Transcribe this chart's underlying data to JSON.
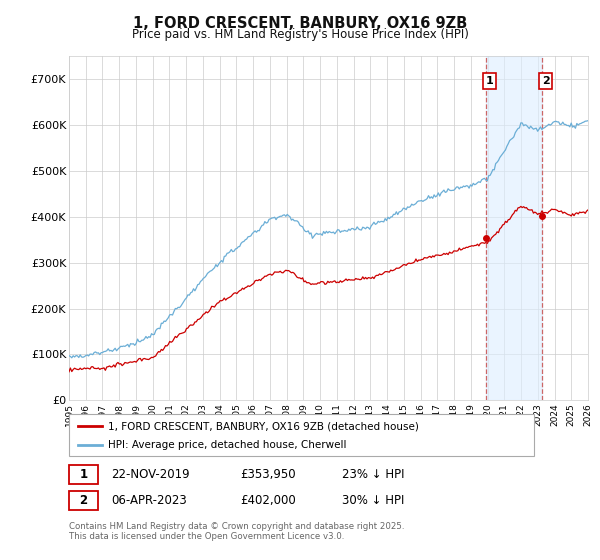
{
  "title": "1, FORD CRESCENT, BANBURY, OX16 9ZB",
  "subtitle": "Price paid vs. HM Land Registry's House Price Index (HPI)",
  "legend_entry1": "1, FORD CRESCENT, BANBURY, OX16 9ZB (detached house)",
  "legend_entry2": "HPI: Average price, detached house, Cherwell",
  "annotation1_date": "22-NOV-2019",
  "annotation1_price": "£353,950",
  "annotation1_hpi": "23% ↓ HPI",
  "annotation2_date": "06-APR-2023",
  "annotation2_price": "£402,000",
  "annotation2_hpi": "30% ↓ HPI",
  "footer": "Contains HM Land Registry data © Crown copyright and database right 2025.\nThis data is licensed under the Open Government Licence v3.0.",
  "hpi_color": "#6baed6",
  "price_color": "#cc0000",
  "shaded_color": "#ddeeff",
  "background_color": "#ffffff",
  "grid_color": "#cccccc",
  "ylim": [
    0,
    750000
  ],
  "yticks": [
    0,
    100000,
    200000,
    300000,
    400000,
    500000,
    600000,
    700000
  ],
  "ytick_labels": [
    "£0",
    "£100K",
    "£200K",
    "£300K",
    "£400K",
    "£500K",
    "£600K",
    "£700K"
  ],
  "sale1_x": 2019.9,
  "sale1_y": 353950,
  "sale2_x": 2023.27,
  "sale2_y": 402000,
  "xmin": 1995,
  "xmax": 2026
}
